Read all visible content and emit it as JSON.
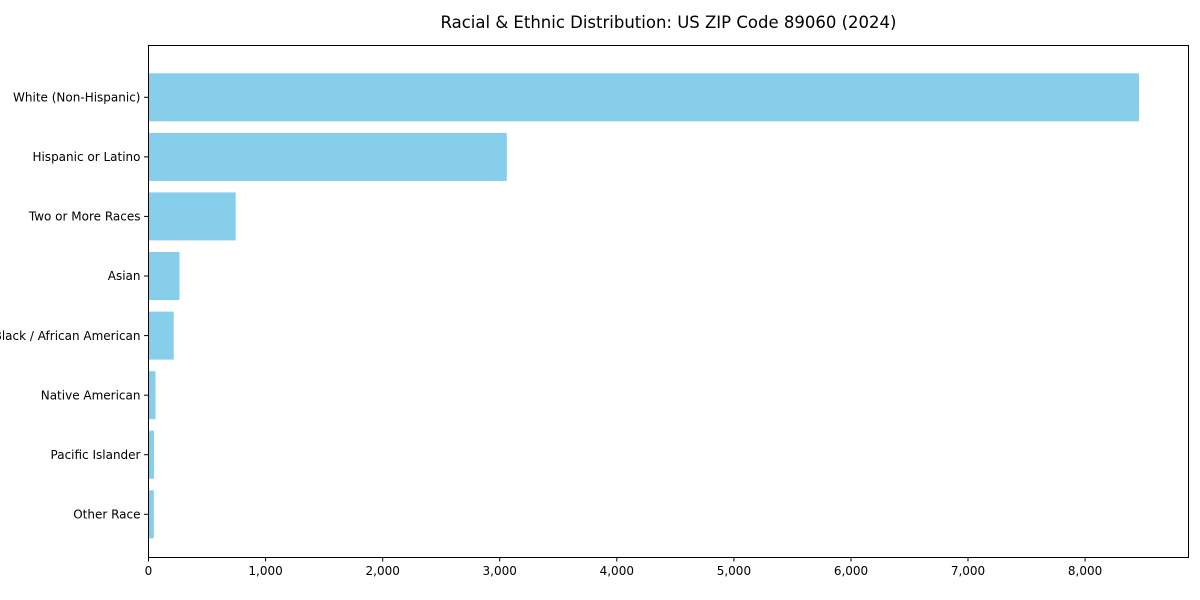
{
  "chart_data": {
    "type": "bar",
    "orientation": "horizontal",
    "title": "Racial & Ethnic Distribution: US ZIP Code 89060 (2024)",
    "categories": [
      "White (Non-Hispanic)",
      "Hispanic or Latino",
      "Two or More Races",
      "Asian",
      "Black / African American",
      "Native American",
      "Pacific Islander",
      "Other Race"
    ],
    "values": [
      8460,
      3060,
      745,
      265,
      215,
      60,
      48,
      45
    ],
    "xlabel": "",
    "ylabel": "",
    "xlim": [
      0,
      8883
    ],
    "xticks": [
      0,
      1000,
      2000,
      3000,
      4000,
      5000,
      6000,
      7000,
      8000
    ],
    "xtick_labels": [
      "0",
      "1,000",
      "2,000",
      "3,000",
      "4,000",
      "5,000",
      "6,000",
      "7,000",
      "8,000"
    ],
    "bar_color": "#87CEEB",
    "axis_color": "#000000",
    "text_color": "#000000",
    "background_color": "#ffffff",
    "grid": false,
    "legend": "none"
  }
}
